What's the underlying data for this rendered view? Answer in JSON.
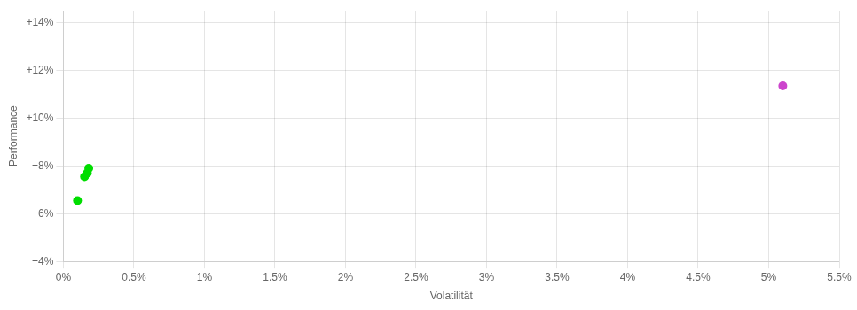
{
  "chart_data": {
    "type": "scatter",
    "xlabel": "Volatilität",
    "ylabel": "Performance",
    "xlim": [
      0,
      0.055
    ],
    "ylim": [
      0.04,
      0.145
    ],
    "xticks": [
      {
        "value": 0.0,
        "label": "0%"
      },
      {
        "value": 0.005,
        "label": "0.5%"
      },
      {
        "value": 0.01,
        "label": "1%"
      },
      {
        "value": 0.015,
        "label": "1.5%"
      },
      {
        "value": 0.02,
        "label": "2%"
      },
      {
        "value": 0.025,
        "label": "2.5%"
      },
      {
        "value": 0.03,
        "label": "3%"
      },
      {
        "value": 0.035,
        "label": "3.5%"
      },
      {
        "value": 0.04,
        "label": "4%"
      },
      {
        "value": 0.045,
        "label": "4.5%"
      },
      {
        "value": 0.05,
        "label": "5%"
      },
      {
        "value": 0.055,
        "label": "5.5%"
      }
    ],
    "yticks": [
      {
        "value": 0.04,
        "label": "+4%"
      },
      {
        "value": 0.06,
        "label": "+6%"
      },
      {
        "value": 0.08,
        "label": "+8%"
      },
      {
        "value": 0.1,
        "label": "+10%"
      },
      {
        "value": 0.12,
        "label": "+12%"
      },
      {
        "value": 0.14,
        "label": "+14%"
      }
    ],
    "grid": true,
    "series": [
      {
        "color": "#00dd00",
        "x": [
          0.0018,
          0.0017,
          0.0015,
          0.001
        ],
        "values": [
          0.079,
          0.077,
          0.0755,
          0.0655
        ]
      },
      {
        "color": "#cc44cc",
        "x": [
          0.051
        ],
        "values": [
          0.1135
        ]
      }
    ]
  }
}
